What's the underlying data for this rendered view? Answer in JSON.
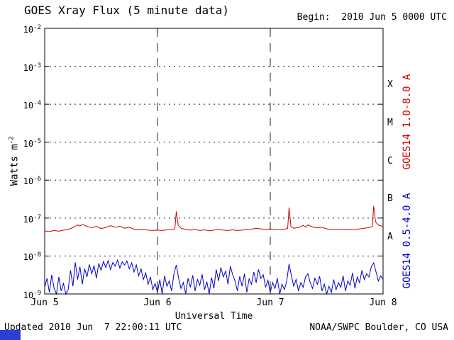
{
  "chart_data": {
    "type": "line",
    "title": "GOES Xray Flux (5 minute data)",
    "begin_label": "Begin:  2010 Jun 5 0000 UTC",
    "xlabel": "Universal Time",
    "ylabel_base": "Watts m",
    "ylabel_sup": "-2",
    "y_axis": {
      "scale": "log",
      "base": "10",
      "exponents": [
        "-2",
        "-3",
        "-4",
        "-5",
        "-6",
        "-7",
        "-8",
        "-9"
      ],
      "min": 1e-09,
      "max": 0.01,
      "grid_exponents": [
        -3,
        -4,
        -5,
        -6,
        -7,
        -8
      ]
    },
    "x_axis": {
      "hours_span": 72,
      "ticks": [
        {
          "label": "Jun 5",
          "hour": 0
        },
        {
          "label": "Jun 6",
          "hour": 24
        },
        {
          "label": "Jun 7",
          "hour": 48
        },
        {
          "label": "Jun 8",
          "hour": 72
        }
      ],
      "grid_hours": [
        24,
        48
      ]
    },
    "flare_classes": [
      {
        "label": "X",
        "mid_exp": -3.5
      },
      {
        "label": "M",
        "mid_exp": -4.5
      },
      {
        "label": "C",
        "mid_exp": -5.5
      },
      {
        "label": "B",
        "mid_exp": -6.5
      },
      {
        "label": "A",
        "mid_exp": -7.5
      }
    ],
    "side_labels": {
      "long": "GOES14 1.0-8.0 A",
      "short": "GOES14 0.5-4.0 A"
    },
    "colors": {
      "long": "#cc0000",
      "short": "#0000cc",
      "frame": "#000000",
      "background": "#ffffff",
      "corner_box": "#2b3fd4"
    },
    "series": [
      {
        "name": "GOES14 1.0-8.0 A",
        "color_key": "long",
        "scale": 1e-08,
        "points": [
          [
            0,
            4.6
          ],
          [
            1,
            4.4
          ],
          [
            2,
            4.7
          ],
          [
            3,
            4.5
          ],
          [
            4,
            4.8
          ],
          [
            5,
            5.0
          ],
          [
            6,
            5.6
          ],
          [
            7,
            6.6
          ],
          [
            7.5,
            6.2
          ],
          [
            8,
            6.8
          ],
          [
            9,
            6.0
          ],
          [
            10,
            5.6
          ],
          [
            11,
            6.0
          ],
          [
            12,
            5.3
          ],
          [
            13,
            5.6
          ],
          [
            14,
            6.3
          ],
          [
            15,
            5.7
          ],
          [
            16,
            6.1
          ],
          [
            17,
            5.4
          ],
          [
            18,
            5.7
          ],
          [
            19,
            5.1
          ],
          [
            20,
            4.9
          ],
          [
            21,
            5.0
          ],
          [
            22,
            4.8
          ],
          [
            23,
            4.7
          ],
          [
            24,
            4.8
          ],
          [
            25,
            4.7
          ],
          [
            26,
            4.9
          ],
          [
            27,
            5.0
          ],
          [
            27.7,
            5.2
          ],
          [
            28,
            15.0
          ],
          [
            28.4,
            6.5
          ],
          [
            29,
            5.4
          ],
          [
            30,
            5.0
          ],
          [
            31,
            4.8
          ],
          [
            32,
            5.0
          ],
          [
            33,
            4.7
          ],
          [
            34,
            4.9
          ],
          [
            35,
            4.6
          ],
          [
            36,
            4.8
          ],
          [
            37,
            5.0
          ],
          [
            38,
            4.8
          ],
          [
            39,
            4.7
          ],
          [
            40,
            4.9
          ],
          [
            41,
            4.7
          ],
          [
            42,
            4.8
          ],
          [
            43,
            5.0
          ],
          [
            44,
            5.1
          ],
          [
            45,
            5.4
          ],
          [
            46,
            5.2
          ],
          [
            47,
            5.0
          ],
          [
            48,
            5.2
          ],
          [
            49,
            5.0
          ],
          [
            50,
            4.9
          ],
          [
            51,
            5.1
          ],
          [
            51.7,
            5.3
          ],
          [
            52,
            19.0
          ],
          [
            52.4,
            6.0
          ],
          [
            53,
            5.4
          ],
          [
            54,
            5.6
          ],
          [
            55,
            6.4
          ],
          [
            55.5,
            5.8
          ],
          [
            56,
            6.6
          ],
          [
            57,
            5.8
          ],
          [
            58,
            5.5
          ],
          [
            59,
            5.7
          ],
          [
            60,
            5.2
          ],
          [
            61,
            5.0
          ],
          [
            62,
            4.9
          ],
          [
            63,
            5.1
          ],
          [
            64,
            4.9
          ],
          [
            65,
            5.0
          ],
          [
            66,
            4.9
          ],
          [
            67,
            5.2
          ],
          [
            68,
            5.4
          ],
          [
            69,
            5.6
          ],
          [
            69.7,
            6.0
          ],
          [
            70,
            21.0
          ],
          [
            70.4,
            8.0
          ],
          [
            71,
            6.5
          ],
          [
            72,
            6.0
          ]
        ]
      },
      {
        "name": "GOES14 0.5-4.0 A",
        "color_key": "short",
        "scale": 1e-09,
        "points": [
          [
            0,
            1.5
          ],
          [
            0.5,
            2.6
          ],
          [
            1,
            1.1
          ],
          [
            1.5,
            3.2
          ],
          [
            2,
            1.4
          ],
          [
            2.5,
            1.0
          ],
          [
            3,
            2.8
          ],
          [
            3.5,
            1.2
          ],
          [
            4,
            1.9
          ],
          [
            4.5,
            1.0
          ],
          [
            5,
            1.3
          ],
          [
            5.5,
            4.2
          ],
          [
            6,
            1.6
          ],
          [
            6.5,
            6.8
          ],
          [
            7,
            2.4
          ],
          [
            7.5,
            5.2
          ],
          [
            8,
            1.8
          ],
          [
            8.5,
            4.6
          ],
          [
            9,
            2.8
          ],
          [
            9.5,
            6.0
          ],
          [
            10,
            3.4
          ],
          [
            10.5,
            5.6
          ],
          [
            11,
            2.6
          ],
          [
            11.5,
            6.4
          ],
          [
            12,
            4.2
          ],
          [
            12.5,
            7.2
          ],
          [
            13,
            5.0
          ],
          [
            13.5,
            7.6
          ],
          [
            14,
            4.4
          ],
          [
            14.5,
            6.8
          ],
          [
            15,
            5.4
          ],
          [
            15.5,
            7.8
          ],
          [
            16,
            4.8
          ],
          [
            16.5,
            7.0
          ],
          [
            17,
            5.8
          ],
          [
            17.5,
            7.4
          ],
          [
            18,
            4.6
          ],
          [
            18.5,
            6.6
          ],
          [
            19,
            3.8
          ],
          [
            19.5,
            5.8
          ],
          [
            20,
            3.0
          ],
          [
            20.5,
            4.6
          ],
          [
            21,
            2.4
          ],
          [
            21.5,
            3.6
          ],
          [
            22,
            1.8
          ],
          [
            22.5,
            2.8
          ],
          [
            23,
            1.3
          ],
          [
            23.5,
            1.9
          ],
          [
            24,
            1.1
          ],
          [
            24.5,
            2.4
          ],
          [
            25,
            1.0
          ],
          [
            25.5,
            3.0
          ],
          [
            26,
            1.6
          ],
          [
            26.5,
            2.2
          ],
          [
            27,
            1.2
          ],
          [
            27.5,
            3.4
          ],
          [
            28,
            5.8
          ],
          [
            28.5,
            2.6
          ],
          [
            29,
            1.4
          ],
          [
            29.5,
            2.0
          ],
          [
            30,
            1.0
          ],
          [
            30.5,
            2.6
          ],
          [
            31,
            1.5
          ],
          [
            31.5,
            3.1
          ],
          [
            32,
            1.2
          ],
          [
            32.5,
            2.4
          ],
          [
            33,
            1.7
          ],
          [
            33.5,
            3.3
          ],
          [
            34,
            1.3
          ],
          [
            34.5,
            2.1
          ],
          [
            35,
            1.0
          ],
          [
            35.5,
            2.7
          ],
          [
            36,
            1.4
          ],
          [
            36.5,
            4.4
          ],
          [
            37,
            2.2
          ],
          [
            37.5,
            5.0
          ],
          [
            38,
            2.8
          ],
          [
            38.5,
            4.0
          ],
          [
            39,
            1.8
          ],
          [
            39.5,
            5.4
          ],
          [
            40,
            3.2
          ],
          [
            40.5,
            2.2
          ],
          [
            41,
            1.2
          ],
          [
            41.5,
            2.9
          ],
          [
            42,
            1.6
          ],
          [
            42.5,
            3.4
          ],
          [
            43,
            1.1
          ],
          [
            43.5,
            2.5
          ],
          [
            44,
            1.8
          ],
          [
            44.5,
            3.8
          ],
          [
            45,
            2.0
          ],
          [
            45.5,
            4.4
          ],
          [
            46,
            2.6
          ],
          [
            46.5,
            3.2
          ],
          [
            47,
            1.5
          ],
          [
            47.5,
            2.3
          ],
          [
            48,
            1.1
          ],
          [
            48.5,
            2.0
          ],
          [
            49,
            1.4
          ],
          [
            49.5,
            2.6
          ],
          [
            50,
            1.0
          ],
          [
            50.5,
            1.8
          ],
          [
            51,
            1.3
          ],
          [
            51.5,
            2.2
          ],
          [
            52,
            6.2
          ],
          [
            52.5,
            3.0
          ],
          [
            53,
            1.6
          ],
          [
            53.5,
            2.4
          ],
          [
            54,
            1.2
          ],
          [
            54.5,
            2.0
          ],
          [
            55,
            1.5
          ],
          [
            55.5,
            2.8
          ],
          [
            56,
            3.4
          ],
          [
            56.5,
            2.0
          ],
          [
            57,
            1.4
          ],
          [
            57.5,
            2.6
          ],
          [
            58,
            1.8
          ],
          [
            58.5,
            2.9
          ],
          [
            59,
            1.2
          ],
          [
            59.5,
            1.8
          ],
          [
            60,
            1.0
          ],
          [
            60.5,
            1.6
          ],
          [
            61,
            1.1
          ],
          [
            61.5,
            2.4
          ],
          [
            62,
            1.3
          ],
          [
            62.5,
            2.0
          ],
          [
            63,
            1.5
          ],
          [
            63.5,
            3.0
          ],
          [
            64,
            1.2
          ],
          [
            64.5,
            2.2
          ],
          [
            65,
            1.7
          ],
          [
            65.5,
            3.6
          ],
          [
            66,
            1.4
          ],
          [
            66.5,
            2.8
          ],
          [
            67,
            2.0
          ],
          [
            67.5,
            4.2
          ],
          [
            68,
            2.4
          ],
          [
            68.5,
            3.4
          ],
          [
            69,
            2.8
          ],
          [
            69.5,
            5.2
          ],
          [
            70,
            6.6
          ],
          [
            70.5,
            3.8
          ],
          [
            71,
            2.2
          ],
          [
            71.5,
            3.0
          ],
          [
            72,
            2.4
          ]
        ]
      }
    ]
  },
  "footer": {
    "updated": "Updated 2010 Jun  7 22:00:11 UTC",
    "source": "NOAA/SWPC Boulder, CO USA"
  }
}
